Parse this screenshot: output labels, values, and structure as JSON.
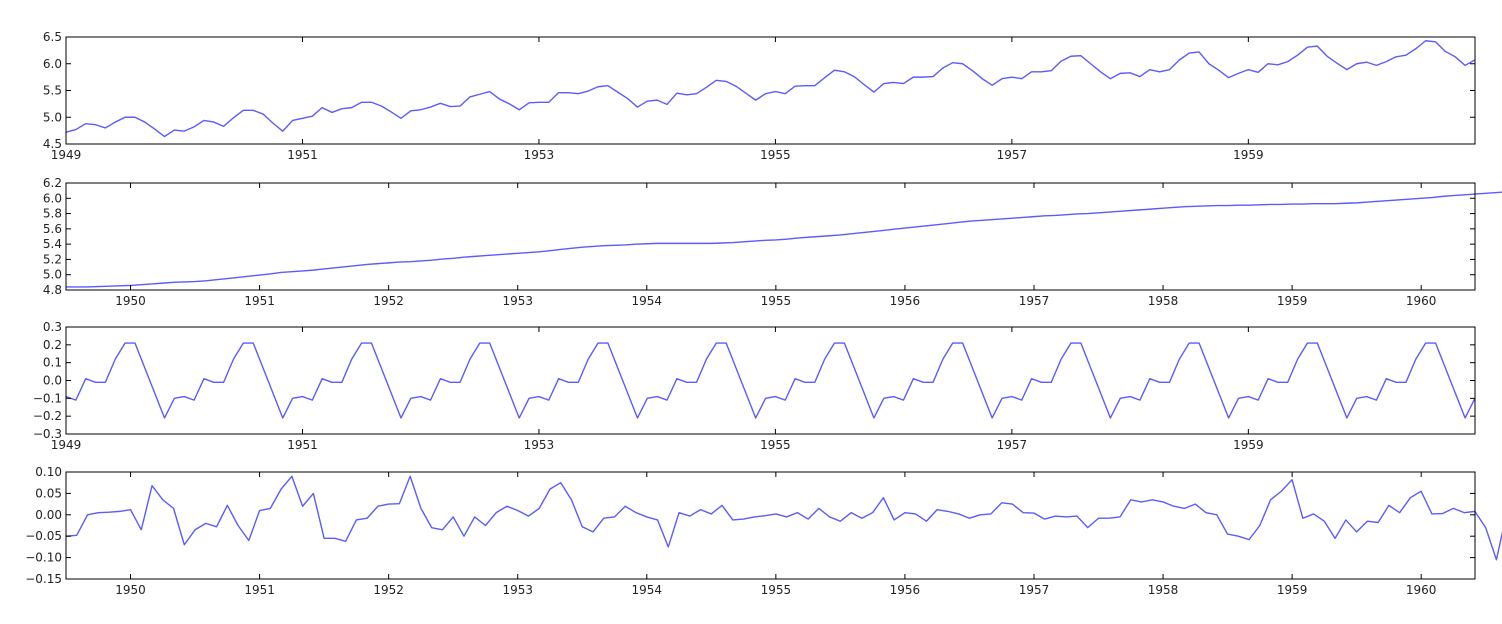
{
  "chart_data": [
    {
      "type": "line",
      "title": "",
      "xlabel": "",
      "ylabel": "",
      "xlim": [
        1949.0,
        1960.917
      ],
      "ylim": [
        4.5,
        6.5
      ],
      "xticks": [
        1949,
        1951,
        1953,
        1955,
        1957,
        1959
      ],
      "xtick_labels": [
        "1949",
        "1951",
        "1953",
        "1955",
        "1957",
        "1959"
      ],
      "yticks": [
        4.5,
        5.0,
        5.5,
        6.0,
        6.5
      ],
      "ytick_labels": [
        "4.5",
        "5.0",
        "5.5",
        "6.0",
        "6.5"
      ],
      "grid": false,
      "color": "#5b5bff",
      "series": [
        {
          "x_start": 1949.0,
          "x_step": 0.08333,
          "values": [
            4.72,
            4.77,
            4.88,
            4.86,
            4.8,
            4.91,
            5.0,
            5.0,
            4.91,
            4.78,
            4.64,
            4.76,
            4.74,
            4.82,
            4.94,
            4.91,
            4.83,
            4.99,
            5.13,
            5.13,
            5.06,
            4.89,
            4.74,
            4.94,
            4.98,
            5.02,
            5.18,
            5.09,
            5.16,
            5.18,
            5.28,
            5.28,
            5.21,
            5.1,
            4.98,
            5.12,
            5.14,
            5.19,
            5.26,
            5.2,
            5.21,
            5.38,
            5.43,
            5.48,
            5.34,
            5.25,
            5.14,
            5.27,
            5.28,
            5.28,
            5.46,
            5.46,
            5.44,
            5.49,
            5.57,
            5.59,
            5.47,
            5.35,
            5.19,
            5.3,
            5.32,
            5.24,
            5.45,
            5.42,
            5.44,
            5.56,
            5.69,
            5.67,
            5.58,
            5.45,
            5.32,
            5.44,
            5.48,
            5.44,
            5.58,
            5.59,
            5.59,
            5.74,
            5.88,
            5.85,
            5.76,
            5.61,
            5.47,
            5.63,
            5.65,
            5.63,
            5.75,
            5.75,
            5.76,
            5.92,
            6.02,
            6.0,
            5.87,
            5.72,
            5.6,
            5.72,
            5.75,
            5.72,
            5.85,
            5.85,
            5.87,
            6.05,
            6.14,
            6.15,
            6.0,
            5.85,
            5.72,
            5.82,
            5.83,
            5.76,
            5.89,
            5.85,
            5.89,
            6.07,
            6.2,
            6.22,
            6.0,
            5.88,
            5.74,
            5.82,
            5.89,
            5.84,
            6.0,
            5.98,
            6.04,
            6.16,
            6.31,
            6.33,
            6.14,
            6.01,
            5.89,
            6.0,
            6.03,
            5.97,
            6.04,
            6.13,
            6.16,
            6.28,
            6.43,
            6.41,
            6.23,
            6.13,
            5.97,
            6.07
          ]
        }
      ]
    },
    {
      "type": "line",
      "title": "",
      "xlabel": "",
      "ylabel": "",
      "xlim": [
        1949.5,
        1960.417
      ],
      "ylim": [
        4.8,
        6.2
      ],
      "xticks": [
        1950,
        1951,
        1952,
        1953,
        1954,
        1955,
        1956,
        1957,
        1958,
        1959,
        1960
      ],
      "xtick_labels": [
        "1950",
        "1951",
        "1952",
        "1953",
        "1954",
        "1955",
        "1956",
        "1957",
        "1958",
        "1959",
        "1960"
      ],
      "yticks": [
        4.8,
        5.0,
        5.2,
        5.4,
        5.6,
        5.8,
        6.0,
        6.2
      ],
      "ytick_labels": [
        "4.8",
        "5.0",
        "5.2",
        "5.4",
        "5.6",
        "5.8",
        "6.0",
        "6.2"
      ],
      "grid": false,
      "color": "#5b5bff",
      "series": [
        {
          "x_start": 1949.5,
          "x_step": 0.08333,
          "values": [
            4.84,
            4.84,
            4.84,
            4.845,
            4.85,
            4.855,
            4.86,
            4.87,
            4.88,
            4.89,
            4.9,
            4.905,
            4.91,
            4.92,
            4.935,
            4.95,
            4.965,
            4.98,
            4.995,
            5.01,
            5.03,
            5.04,
            5.05,
            5.06,
            5.075,
            5.09,
            5.105,
            5.12,
            5.135,
            5.145,
            5.155,
            5.165,
            5.17,
            5.18,
            5.19,
            5.205,
            5.215,
            5.23,
            5.24,
            5.25,
            5.26,
            5.27,
            5.28,
            5.29,
            5.3,
            5.315,
            5.33,
            5.345,
            5.36,
            5.37,
            5.38,
            5.385,
            5.39,
            5.4,
            5.405,
            5.41,
            5.41,
            5.41,
            5.41,
            5.41,
            5.41,
            5.415,
            5.42,
            5.43,
            5.44,
            5.45,
            5.455,
            5.465,
            5.48,
            5.49,
            5.5,
            5.51,
            5.52,
            5.535,
            5.55,
            5.565,
            5.58,
            5.595,
            5.61,
            5.625,
            5.64,
            5.655,
            5.67,
            5.685,
            5.7,
            5.71,
            5.72,
            5.73,
            5.74,
            5.75,
            5.76,
            5.77,
            5.775,
            5.785,
            5.795,
            5.8,
            5.81,
            5.82,
            5.83,
            5.84,
            5.85,
            5.86,
            5.87,
            5.88,
            5.89,
            5.895,
            5.9,
            5.905,
            5.905,
            5.91,
            5.91,
            5.915,
            5.92,
            5.92,
            5.925,
            5.925,
            5.93,
            5.93,
            5.93,
            5.935,
            5.94,
            5.95,
            5.96,
            5.97,
            5.98,
            5.99,
            6.0,
            6.01,
            6.025,
            6.035,
            6.045,
            6.055,
            6.065,
            6.075,
            6.085,
            6.095,
            6.105,
            6.115,
            6.125,
            6.135,
            6.14,
            6.15
          ]
        }
      ]
    },
    {
      "type": "line",
      "title": "",
      "xlabel": "",
      "ylabel": "",
      "xlim": [
        1949.0,
        1960.917
      ],
      "ylim": [
        -0.3,
        0.3
      ],
      "xticks": [
        1949,
        1951,
        1953,
        1955,
        1957,
        1959
      ],
      "xtick_labels": [
        "1949",
        "1951",
        "1953",
        "1955",
        "1957",
        "1959"
      ],
      "yticks": [
        -0.3,
        -0.2,
        -0.1,
        0.0,
        0.1,
        0.2,
        0.3
      ],
      "ytick_labels": [
        "−0.3",
        "−0.2",
        "−0.1",
        "0.0",
        "0.1",
        "0.2",
        "0.3"
      ],
      "grid": false,
      "color": "#5b5bff",
      "seasonal_pattern": [
        -0.09,
        -0.11,
        0.01,
        -0.01,
        -0.01,
        0.12,
        0.21,
        0.21,
        0.07,
        -0.07,
        -0.21,
        -0.1
      ],
      "repeat_years": 12
    },
    {
      "type": "line",
      "title": "",
      "xlabel": "",
      "ylabel": "",
      "xlim": [
        1949.5,
        1960.417
      ],
      "ylim": [
        -0.15,
        0.1
      ],
      "xticks": [
        1950,
        1951,
        1952,
        1953,
        1954,
        1955,
        1956,
        1957,
        1958,
        1959,
        1960
      ],
      "xtick_labels": [
        "1950",
        "1951",
        "1952",
        "1953",
        "1954",
        "1955",
        "1956",
        "1957",
        "1958",
        "1959",
        "1960"
      ],
      "yticks": [
        -0.15,
        -0.1,
        -0.05,
        0.0,
        0.05,
        0.1
      ],
      "ytick_labels": [
        "−0.15",
        "−0.10",
        "−0.05",
        "0.00",
        "0.05",
        "0.10"
      ],
      "grid": false,
      "color": "#5b5bff",
      "series": [
        {
          "x_start": 1949.5,
          "x_step": 0.08333,
          "values": [
            -0.05,
            -0.048,
            0.0,
            0.005,
            0.006,
            0.008,
            0.012,
            -0.035,
            0.068,
            0.035,
            0.015,
            -0.07,
            -0.035,
            -0.02,
            -0.028,
            0.022,
            -0.025,
            -0.06,
            0.01,
            0.015,
            0.06,
            0.09,
            0.02,
            0.05,
            -0.055,
            -0.055,
            -0.062,
            -0.012,
            -0.008,
            0.02,
            0.025,
            0.026,
            0.09,
            0.015,
            -0.03,
            -0.035,
            -0.005,
            -0.05,
            -0.005,
            -0.025,
            0.005,
            0.02,
            0.01,
            -0.003,
            0.015,
            0.06,
            0.075,
            0.035,
            -0.028,
            -0.04,
            -0.008,
            -0.005,
            0.02,
            0.005,
            -0.005,
            -0.012,
            -0.075,
            0.005,
            -0.003,
            0.012,
            0.002,
            0.022,
            -0.012,
            -0.01,
            -0.005,
            -0.002,
            0.002,
            -0.005,
            0.005,
            -0.01,
            0.015,
            -0.005,
            -0.015,
            0.005,
            -0.008,
            0.005,
            0.04,
            -0.012,
            0.005,
            0.002,
            -0.015,
            0.012,
            0.008,
            0.002,
            -0.008,
            0.0,
            0.002,
            0.028,
            0.025,
            0.005,
            0.004,
            -0.01,
            -0.003,
            -0.005,
            -0.003,
            -0.03,
            -0.008,
            -0.008,
            -0.005,
            0.035,
            0.03,
            0.035,
            0.03,
            0.02,
            0.015,
            0.025,
            0.005,
            0.0,
            -0.045,
            -0.05,
            -0.058,
            -0.025,
            0.035,
            0.055,
            0.082,
            -0.008,
            0.002,
            -0.015,
            -0.055,
            -0.012,
            -0.04,
            -0.015,
            -0.018,
            0.022,
            0.005,
            0.04,
            0.055,
            0.002,
            0.003,
            0.015,
            0.005,
            0.008,
            -0.03,
            -0.105,
            0.01,
            0.018,
            0.015
          ]
        }
      ]
    }
  ]
}
